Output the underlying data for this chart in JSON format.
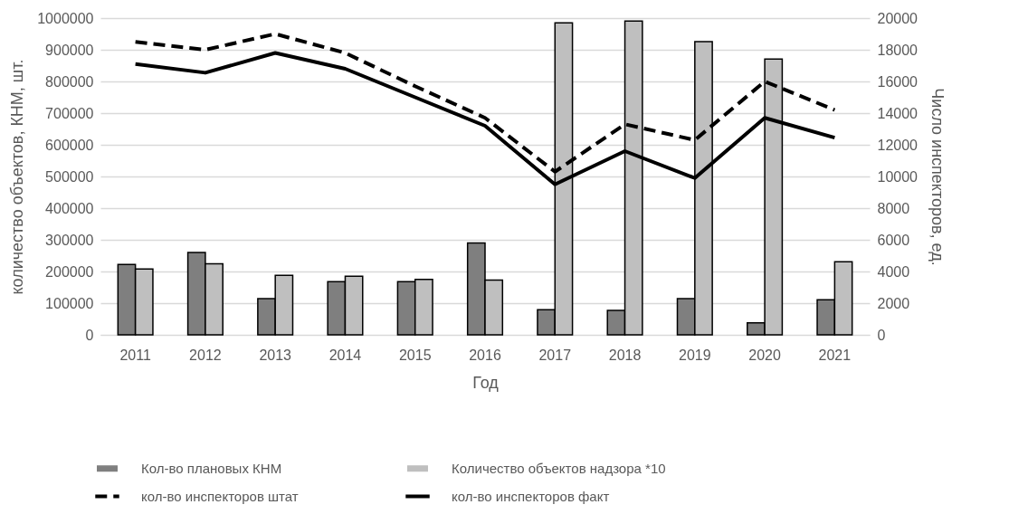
{
  "chart_data": {
    "type": "bar",
    "xlabel": "Год",
    "ylabel": "количество объектов, КНМ, шт.",
    "y2label": "Число инспекторов, ед.",
    "categories": [
      "2011",
      "2012",
      "2013",
      "2014",
      "2015",
      "2016",
      "2017",
      "2018",
      "2019",
      "2020",
      "2021"
    ],
    "series": [
      {
        "name": "Кол-во  плановых КНМ",
        "color": "#7f7f7f",
        "values": [
          222000,
          260000,
          114000,
          168000,
          168000,
          290000,
          79000,
          77000,
          114000,
          38000,
          111000
        ]
      },
      {
        "name": "Количество объектов надзора *10",
        "color": "#bfbfbf",
        "values": [
          208000,
          224000,
          188000,
          185000,
          175000,
          173000,
          985000,
          991000,
          926000,
          871000,
          231000
        ]
      },
      {
        "name": "кол-во инспекторов штат",
        "type": "line",
        "axis": "y2",
        "color": "#000000",
        "line_style": "dashed",
        "values": [
          18500,
          18000,
          19000,
          17800,
          15700,
          13700,
          10300,
          13300,
          12300,
          16000,
          14200
        ]
      },
      {
        "name": "кол-во инспекторов факт",
        "type": "line",
        "axis": "y2",
        "color": "#000000",
        "line_style": "solid",
        "values": [
          17100,
          16550,
          17800,
          16800,
          15000,
          13200,
          9500,
          11600,
          9900,
          13700,
          12450
        ]
      }
    ],
    "ylim": [
      0,
      1000000
    ],
    "yticks": [
      0,
      100000,
      200000,
      300000,
      400000,
      500000,
      600000,
      700000,
      800000,
      900000,
      1000000
    ],
    "y2lim": [
      0,
      20000
    ],
    "y2ticks": [
      0,
      2000,
      4000,
      6000,
      8000,
      10000,
      12000,
      14000,
      16000,
      18000,
      20000
    ],
    "grid": "y",
    "legend": "bottom",
    "marker": "none"
  }
}
